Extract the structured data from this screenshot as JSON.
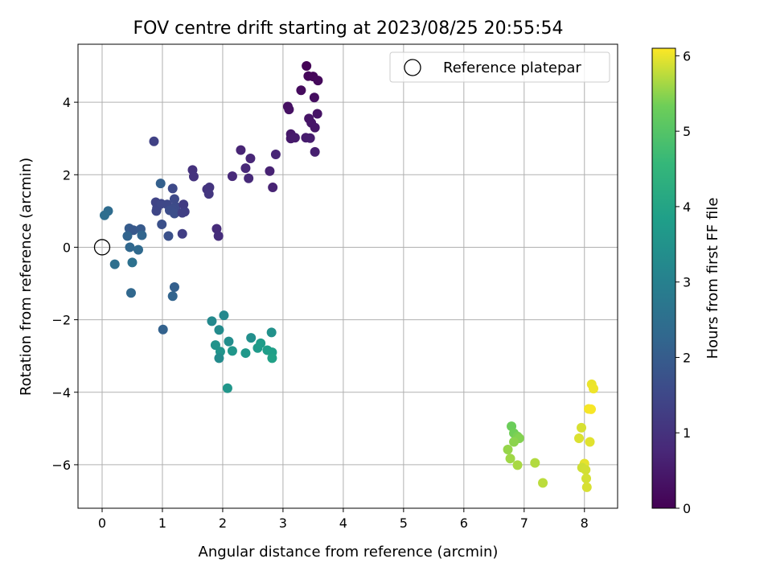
{
  "chart_data": {
    "type": "scatter",
    "title": "FOV centre drift starting at 2023/08/25 20:55:54",
    "xlabel": "Angular distance from reference (arcmin)",
    "ylabel": "Rotation from reference (arcmin)",
    "xlim": [
      -0.4,
      8.55
    ],
    "ylim": [
      -7.2,
      5.6
    ],
    "x_ticks": [
      0,
      1,
      2,
      3,
      4,
      5,
      6,
      7,
      8
    ],
    "y_ticks": [
      -6,
      -4,
      -2,
      0,
      2,
      4
    ],
    "x_tick_labels": [
      "0",
      "1",
      "2",
      "3",
      "4",
      "5",
      "6",
      "7",
      "8"
    ],
    "y_tick_labels": [
      "−6",
      "−4",
      "−2",
      "0",
      "2",
      "4"
    ],
    "grid": true,
    "legend": {
      "position": "top-right",
      "entries": [
        "Reference platepar"
      ]
    },
    "reference_point": {
      "x": 0,
      "y": 0,
      "label": "Reference platepar"
    },
    "colorbar": {
      "label": "Hours from first FF file",
      "range": [
        0,
        6.1
      ],
      "ticks": [
        0,
        1,
        2,
        3,
        4,
        5,
        6
      ],
      "tick_labels": [
        "0",
        "1",
        "2",
        "3",
        "4",
        "5",
        "6"
      ],
      "colormap": "viridis"
    },
    "series": [
      {
        "name": "FOV centre positions",
        "points": [
          [
            3.39,
            5.0
          ],
          [
            3.42,
            4.72
          ],
          [
            3.5,
            4.71
          ],
          [
            3.58,
            4.6
          ],
          [
            3.3,
            4.33
          ],
          [
            3.52,
            4.13
          ],
          [
            3.08,
            3.88
          ],
          [
            3.1,
            3.8
          ],
          [
            3.57,
            3.68
          ],
          [
            3.43,
            3.55
          ],
          [
            3.47,
            3.43
          ],
          [
            3.53,
            3.3
          ],
          [
            3.13,
            3.12
          ],
          [
            3.13,
            3.0
          ],
          [
            3.2,
            3.02
          ],
          [
            3.38,
            3.02
          ],
          [
            3.45,
            3.01
          ],
          [
            3.53,
            2.63
          ],
          [
            2.3,
            2.68
          ],
          [
            2.88,
            2.56
          ],
          [
            2.46,
            2.45
          ],
          [
            2.38,
            2.18
          ],
          [
            2.16,
            1.96
          ],
          [
            2.43,
            1.9
          ],
          [
            2.78,
            2.1
          ],
          [
            2.83,
            1.65
          ],
          [
            1.9,
            0.51
          ],
          [
            1.93,
            0.31
          ],
          [
            1.5,
            2.13
          ],
          [
            1.52,
            1.95
          ],
          [
            1.74,
            1.6
          ],
          [
            1.78,
            1.65
          ],
          [
            1.77,
            1.47
          ],
          [
            0.86,
            2.92
          ],
          [
            0.89,
            1.24
          ],
          [
            0.91,
            1.08
          ],
          [
            0.9,
            1.0
          ],
          [
            0.98,
            1.2
          ],
          [
            1.08,
            1.18
          ],
          [
            1.17,
            1.62
          ],
          [
            1.2,
            1.33
          ],
          [
            1.22,
            1.12
          ],
          [
            1.17,
            1.05
          ],
          [
            1.12,
            1.02
          ],
          [
            1.2,
            0.93
          ],
          [
            1.35,
            1.18
          ],
          [
            1.37,
            0.98
          ],
          [
            1.33,
            0.95
          ],
          [
            0.99,
            0.63
          ],
          [
            1.1,
            0.31
          ],
          [
            1.33,
            0.37
          ],
          [
            0.97,
            1.76
          ],
          [
            0.45,
            0.52
          ],
          [
            0.52,
            0.47
          ],
          [
            0.64,
            0.5
          ],
          [
            0.42,
            0.31
          ],
          [
            0.66,
            0.33
          ],
          [
            0.1,
            1.0
          ],
          [
            0.04,
            0.88
          ],
          [
            0.46,
            0.0
          ],
          [
            0.6,
            -0.07
          ],
          [
            0.21,
            -0.47
          ],
          [
            0.5,
            -0.42
          ],
          [
            1.2,
            -1.1
          ],
          [
            1.17,
            -1.35
          ],
          [
            0.48,
            -1.26
          ],
          [
            1.01,
            -2.27
          ],
          [
            2.02,
            -1.88
          ],
          [
            1.82,
            -2.04
          ],
          [
            1.94,
            -2.28
          ],
          [
            2.1,
            -2.6
          ],
          [
            2.47,
            -2.5
          ],
          [
            2.81,
            -2.35
          ],
          [
            1.88,
            -2.7
          ],
          [
            1.96,
            -2.88
          ],
          [
            2.16,
            -2.86
          ],
          [
            2.38,
            -2.92
          ],
          [
            2.58,
            -2.78
          ],
          [
            2.63,
            -2.65
          ],
          [
            2.74,
            -2.84
          ],
          [
            2.82,
            -2.9
          ],
          [
            1.94,
            -3.06
          ],
          [
            2.82,
            -3.06
          ],
          [
            2.08,
            -3.89
          ],
          [
            6.79,
            -4.94
          ],
          [
            6.83,
            -5.13
          ],
          [
            6.89,
            -5.22
          ],
          [
            6.92,
            -5.27
          ],
          [
            6.83,
            -5.37
          ],
          [
            6.73,
            -5.58
          ],
          [
            6.77,
            -5.83
          ],
          [
            6.89,
            -6.01
          ],
          [
            7.18,
            -5.95
          ],
          [
            7.31,
            -6.5
          ],
          [
            8.12,
            -3.78
          ],
          [
            8.15,
            -3.9
          ],
          [
            8.07,
            -4.46
          ],
          [
            8.11,
            -4.47
          ],
          [
            7.95,
            -4.98
          ],
          [
            7.91,
            -5.27
          ],
          [
            8.09,
            -5.37
          ],
          [
            8.0,
            -5.97
          ],
          [
            7.96,
            -6.08
          ],
          [
            8.02,
            -6.14
          ],
          [
            8.03,
            -6.38
          ],
          [
            8.04,
            -6.62
          ]
        ],
        "hours": [
          0.05,
          0.1,
          0.12,
          0.15,
          0.2,
          0.25,
          0.3,
          0.32,
          0.35,
          0.38,
          0.4,
          0.42,
          0.45,
          0.48,
          0.5,
          0.52,
          0.55,
          0.6,
          0.7,
          0.72,
          0.75,
          0.78,
          0.8,
          0.82,
          0.65,
          0.68,
          0.85,
          0.88,
          1.0,
          1.02,
          1.05,
          1.07,
          1.1,
          1.35,
          1.4,
          1.42,
          1.45,
          1.47,
          1.5,
          1.52,
          1.55,
          1.57,
          1.6,
          1.62,
          1.65,
          1.2,
          1.25,
          1.3,
          1.7,
          1.72,
          1.28,
          2.1,
          2.0,
          1.9,
          1.95,
          2.2,
          2.25,
          2.4,
          2.45,
          2.3,
          2.35,
          2.5,
          2.55,
          2.1,
          2.2,
          2.3,
          2.15,
          3.2,
          3.25,
          3.3,
          3.35,
          3.4,
          3.45,
          3.5,
          3.55,
          3.6,
          3.65,
          3.7,
          3.75,
          3.8,
          3.85,
          3.3,
          3.9,
          3.6,
          5.3,
          5.35,
          5.4,
          5.45,
          5.5,
          5.55,
          5.6,
          5.65,
          5.7,
          5.75,
          6.0,
          6.02,
          6.05,
          6.07,
          5.9,
          5.92,
          5.95,
          5.97,
          5.85,
          5.87,
          5.88,
          5.9
        ]
      }
    ]
  }
}
